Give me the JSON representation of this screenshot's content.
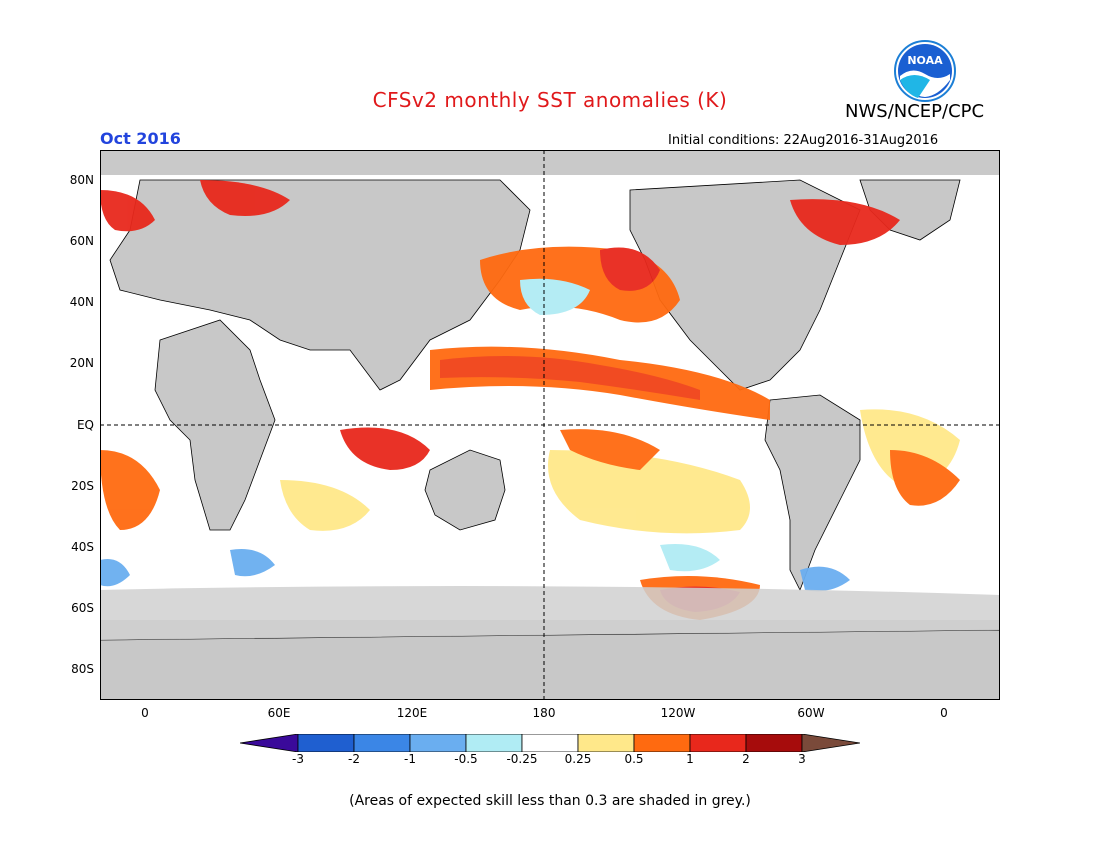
{
  "header": {
    "title": "CFSv2 monthly SST anomalies (K)",
    "org": "NWS/NCEP/CPC",
    "valid_month": "Oct 2016",
    "initial_conditions": "Initial conditions: 22Aug2016-31Aug2016",
    "logo_text": "NOAA"
  },
  "map": {
    "lat_labels": [
      "80N",
      "60N",
      "40N",
      "20N",
      "EQ",
      "20S",
      "40S",
      "60S",
      "80S"
    ],
    "lon_labels": [
      "0",
      "60E",
      "120E",
      "180",
      "120W",
      "60W",
      "0"
    ]
  },
  "colorbar": {
    "ticks": [
      "-3",
      "-2",
      "-1",
      "-0.5",
      "-0.25",
      "0.25",
      "0.5",
      "1",
      "2",
      "3"
    ],
    "colors": [
      "#3a0a9a",
      "#1f5fd0",
      "#3b86e6",
      "#6aaef0",
      "#b0ecf4",
      "#ffffff",
      "#ffe88a",
      "#ffc040",
      "#ff6a10",
      "#e8281c",
      "#a60c0c",
      "#7a4a3a"
    ]
  },
  "footer": {
    "note": "(Areas of expected skill less than 0.3 are shaded in grey.)"
  }
}
